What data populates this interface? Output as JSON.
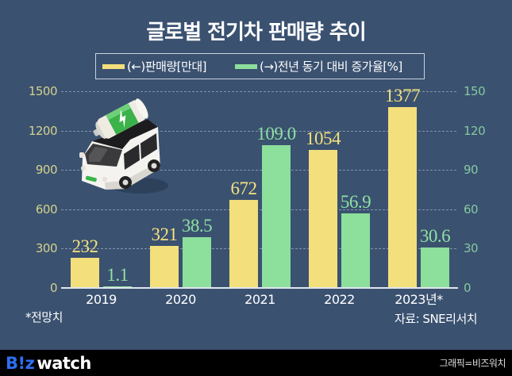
{
  "header": {
    "title": "글로벌 전기차 판매량 추이"
  },
  "legend": {
    "items": [
      {
        "label": "(←)판매량[만대]",
        "color": "#f3df7b"
      },
      {
        "label": "(→)전년 동기 대비 증가율[%]",
        "color": "#8ddf9c"
      }
    ]
  },
  "notes": {
    "footnote": "*전망치",
    "source": "자료: SNE리서치"
  },
  "footer": {
    "logo_part1": "B!z",
    "logo_part2": "watch",
    "credit": "그래픽=비즈워치"
  },
  "illustration": {
    "icon": "electric-car-with-battery-icon"
  },
  "chart_data": {
    "type": "bar",
    "title": "글로벌 전기차 판매량 추이",
    "categories": [
      "2019",
      "2020",
      "2021",
      "2022",
      "2023년*"
    ],
    "series": [
      {
        "name": "(←)판매량[만대]",
        "axis": "left",
        "color": "#f3df7b",
        "label_color": "#f4e27e",
        "values": [
          232,
          321,
          672,
          1054,
          1377
        ],
        "labels": [
          "232",
          "321",
          "672",
          "1054",
          "1377"
        ]
      },
      {
        "name": "(→)전년 동기 대비 증가율[%]",
        "axis": "right",
        "color": "#8ddf9c",
        "label_color": "#8fe0a2",
        "values": [
          1.1,
          38.5,
          109.0,
          56.9,
          30.6
        ],
        "labels": [
          "1.1",
          "38.5",
          "109.0",
          "56.9",
          "30.6"
        ]
      }
    ],
    "left_axis": {
      "label": "판매량[만대]",
      "ylim": [
        0,
        1500
      ],
      "ticks": [
        0,
        300,
        600,
        900,
        1200,
        1500
      ]
    },
    "right_axis": {
      "label": "전년 동기 대비 증가율[%]",
      "ylim": [
        0,
        150
      ],
      "ticks": [
        0,
        30,
        60,
        90,
        120,
        150
      ]
    },
    "xlabel": "",
    "grid": true,
    "legend_position": "top",
    "annotations": [
      "*전망치",
      "자료: SNE리서치"
    ]
  }
}
